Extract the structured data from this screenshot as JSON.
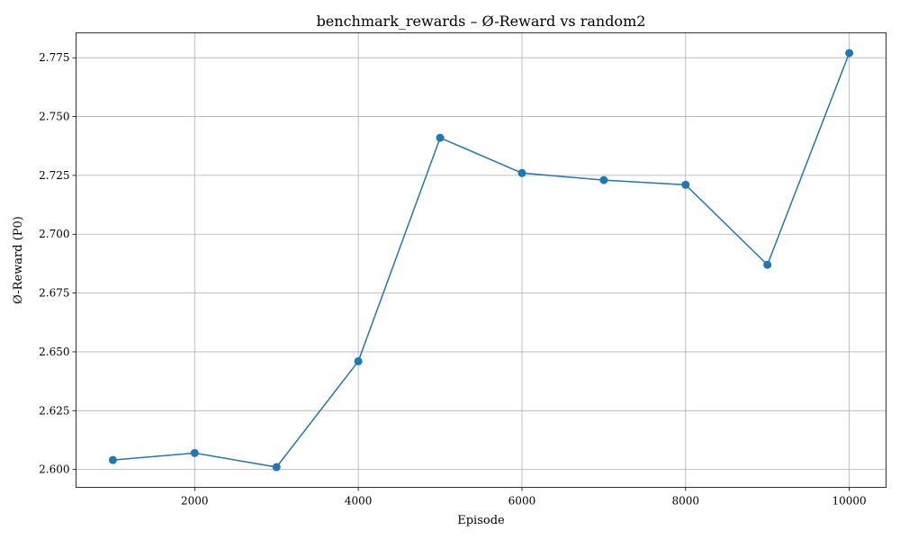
{
  "chart_data": {
    "type": "line",
    "title": "benchmark_rewards – Ø-Reward vs random2",
    "xlabel": "Episode",
    "ylabel": "Ø-Reward (P0)",
    "x": [
      1000,
      2000,
      3000,
      4000,
      5000,
      6000,
      7000,
      8000,
      9000,
      10000
    ],
    "series": [
      {
        "values": [
          2.604,
          2.607,
          2.601,
          2.646,
          2.741,
          2.726,
          2.723,
          2.721,
          2.687,
          2.777
        ],
        "color": "#1f77b4",
        "marker": "circle"
      }
    ],
    "xlim": [
      550,
      10450
    ],
    "ylim": [
      2.5924,
      2.7856
    ],
    "xticks": [
      2000,
      4000,
      6000,
      8000,
      10000
    ],
    "xtick_labels": [
      "2000",
      "4000",
      "6000",
      "8000",
      "10000"
    ],
    "yticks": [
      2.6,
      2.625,
      2.65,
      2.675,
      2.7,
      2.725,
      2.75,
      2.775
    ],
    "ytick_labels": [
      "2.600",
      "2.625",
      "2.650",
      "2.675",
      "2.700",
      "2.725",
      "2.750",
      "2.775"
    ],
    "grid": true,
    "legend": false
  }
}
